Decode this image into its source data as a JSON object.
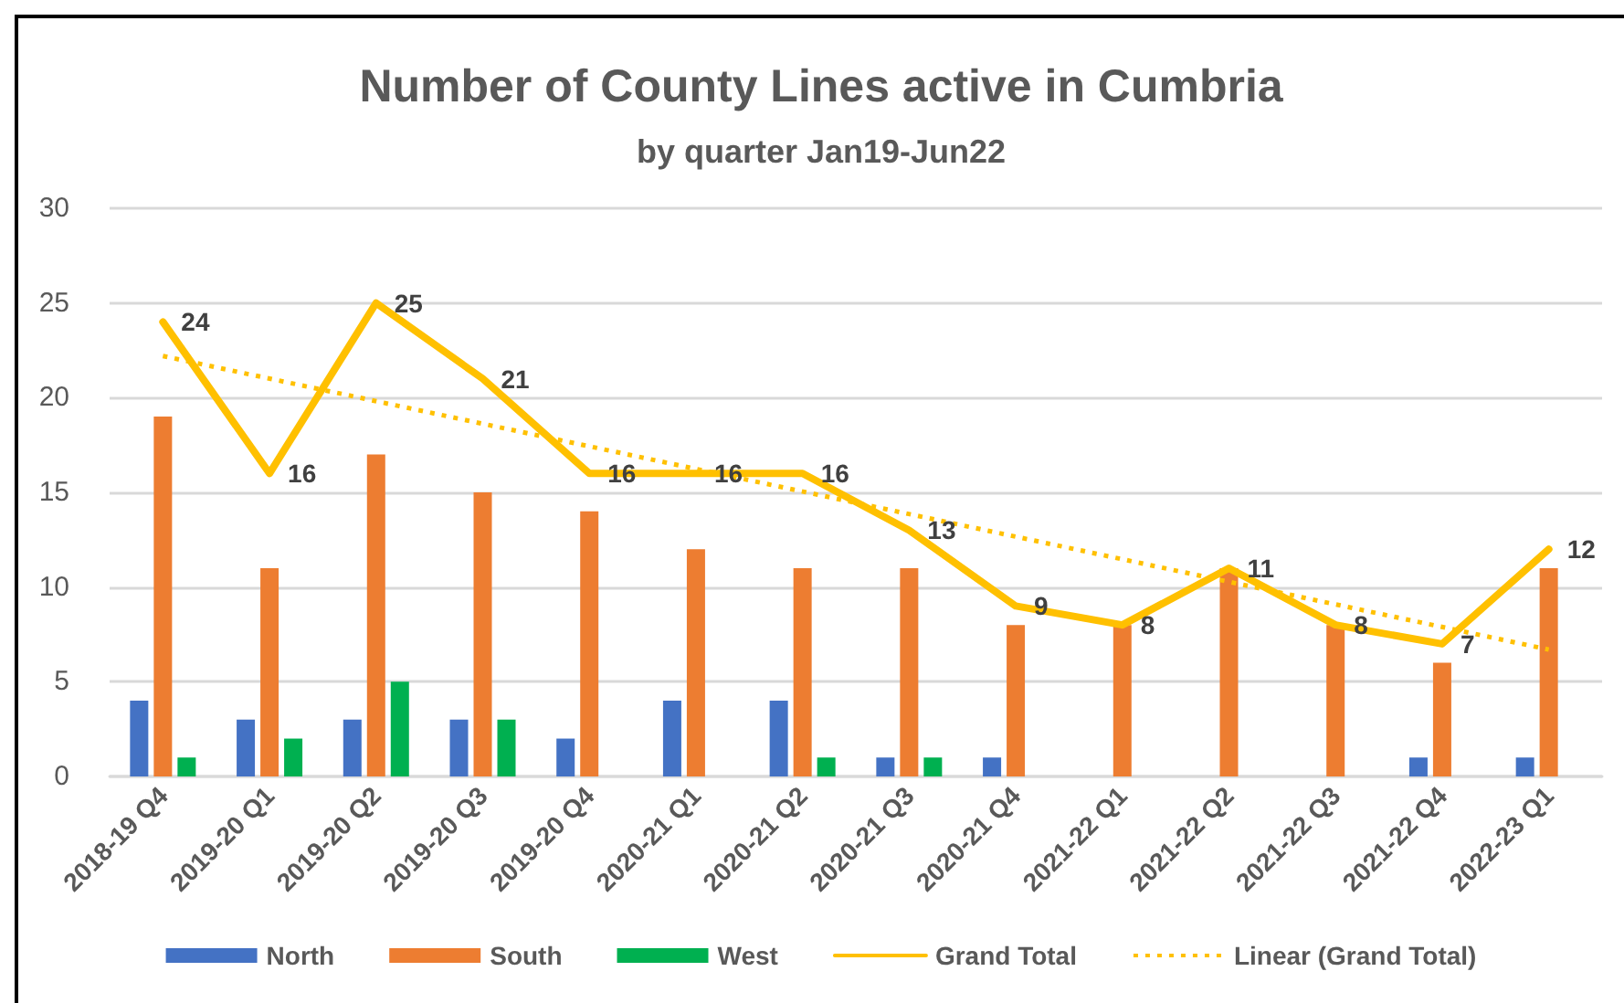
{
  "chart_data": {
    "type": "bar",
    "title": "Number of County Lines active in Cumbria",
    "subtitle": "by quarter Jan19-Jun22",
    "categories": [
      "2018-19 Q4",
      "2019-20 Q1",
      "2019-20 Q2",
      "2019-20 Q3",
      "2019-20 Q4",
      "2020-21 Q1",
      "2020-21 Q2",
      "2020-21 Q3",
      "2020-21 Q4",
      "2021-22 Q1",
      "2021-22 Q2",
      "2021-22 Q3",
      "2021-22 Q4",
      "2022-23 Q1"
    ],
    "series": [
      {
        "name": "North",
        "color": "#4472c4",
        "values": [
          4,
          3,
          3,
          3,
          2,
          4,
          4,
          1,
          1,
          null,
          null,
          null,
          1,
          1
        ]
      },
      {
        "name": "South",
        "color": "#ed7d31",
        "values": [
          19,
          11,
          17,
          15,
          14,
          12,
          11,
          11,
          8,
          8,
          11,
          8,
          6,
          11
        ]
      },
      {
        "name": "West",
        "color": "#00b050",
        "values": [
          1,
          2,
          5,
          3,
          null,
          null,
          1,
          1,
          null,
          null,
          null,
          null,
          null,
          null
        ]
      },
      {
        "name": "Grand Total",
        "type": "line",
        "color": "#ffc000",
        "values": [
          24,
          16,
          25,
          21,
          16,
          16,
          16,
          13,
          9,
          8,
          11,
          8,
          7,
          12
        ],
        "value_labels": [
          "24",
          "16",
          "25",
          "21",
          "16",
          "16",
          "16",
          "13",
          "9",
          "8",
          "11",
          "8",
          "7",
          "12"
        ]
      },
      {
        "name": "Linear (Grand Total)",
        "type": "line",
        "color": "#ffc000",
        "line_style": "dotted",
        "x": [
          "2018-19 Q4",
          "2022-23 Q1"
        ],
        "values": [
          22.2,
          6.7
        ]
      }
    ],
    "ylim": [
      0,
      30
    ],
    "yticks": [
      0,
      5,
      10,
      15,
      20,
      25,
      30
    ],
    "grid": "y",
    "legend": "bottom",
    "marker": "none"
  }
}
